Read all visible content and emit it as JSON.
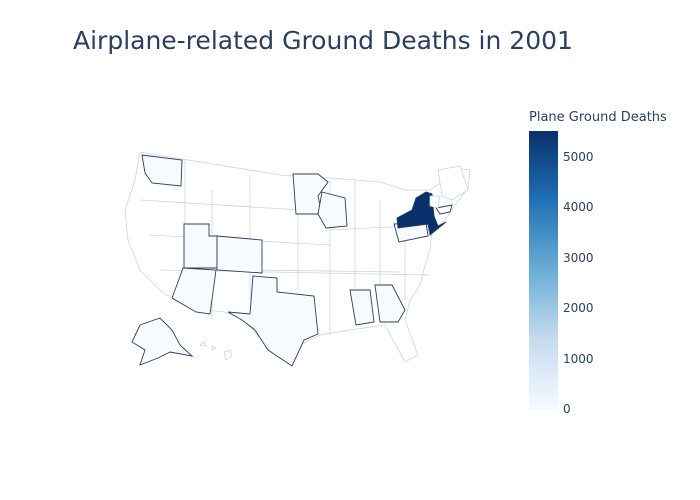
{
  "title": "Airplane-related Ground Deaths in 2001",
  "colorbar": {
    "title": "Plane Ground Deaths",
    "ticks": [
      "5000",
      "4000",
      "3000",
      "2000",
      "1000",
      "0"
    ],
    "min": 0,
    "max": 5500,
    "colorscale": [
      "#f7fbff",
      "#c6dbef",
      "#6baed6",
      "#2171b5",
      "#08306b"
    ]
  },
  "chart_data": {
    "type": "choropleth",
    "scope": "usa",
    "highlighted_states": [
      "Washington",
      "Utah",
      "Colorado",
      "Arizona",
      "Texas",
      "Minnesota",
      "Wisconsin",
      "Alabama",
      "Georgia",
      "Pennsylvania",
      "New York",
      "Massachusetts",
      "Alaska"
    ],
    "max_value_state": "New York"
  }
}
